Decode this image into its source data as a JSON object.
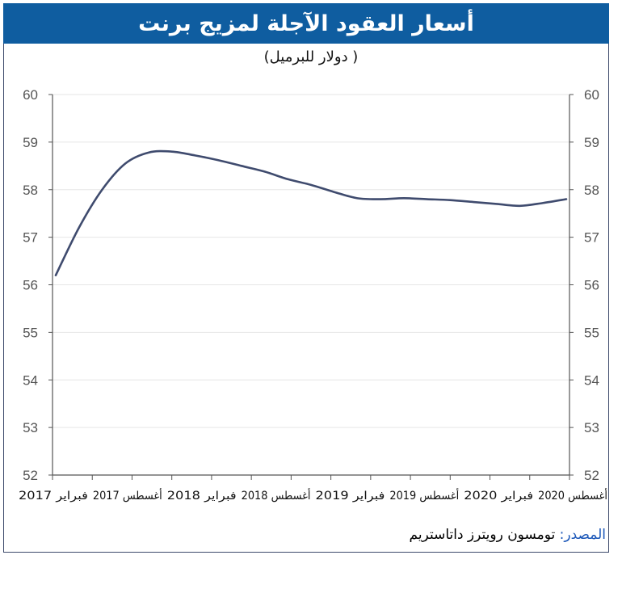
{
  "title": "أسعار العقود الآجلة لمزيج برنت",
  "subtitle": "( دولار للبرميل)",
  "source": {
    "label": "المصدر:",
    "text": "تومسون رويترز داتاستريم"
  },
  "colors": {
    "title_bg": "#0f5da0",
    "line": "#3f4b6e",
    "grid": "#e6e6e6",
    "source_label": "#1a56b8"
  },
  "chart_data": {
    "type": "line",
    "title": "أسعار العقود الآجلة لمزيج برنت",
    "subtitle": "( دولار للبرميل)",
    "ylim": [
      52,
      60
    ],
    "yticks": [
      52,
      53,
      54,
      55,
      56,
      57,
      58,
      59,
      60
    ],
    "grid": true,
    "x_ticks": [
      "فبراير 2017",
      "أغسطس 2017",
      "فبراير 2018",
      "أغسطس 2018",
      "فبراير 2019",
      "أغسطس 2019",
      "فبراير 2020",
      "أغسطس 2020"
    ],
    "x_tick_labels_shown": [
      "فبراير 2017",
      "أغسطس 2017",
      "فبراير 2018",
      "أغسطس 2018",
      "فبراير 2019",
      "أغسطس 2019",
      "فبراير 2020",
      "أغسطس 2020"
    ],
    "series": [
      {
        "values": [
          {
            "x": 0.0,
            "y": 56.2
          },
          {
            "x": 0.5,
            "y": 57.2
          },
          {
            "x": 1.0,
            "y": 58.0
          },
          {
            "x": 1.5,
            "y": 58.55
          },
          {
            "x": 2.0,
            "y": 58.78
          },
          {
            "x": 2.5,
            "y": 58.8
          },
          {
            "x": 3.0,
            "y": 58.72
          },
          {
            "x": 3.5,
            "y": 58.62
          },
          {
            "x": 4.0,
            "y": 58.5
          },
          {
            "x": 4.5,
            "y": 58.38
          },
          {
            "x": 5.0,
            "y": 58.22
          },
          {
            "x": 5.5,
            "y": 58.1
          },
          {
            "x": 6.0,
            "y": 57.95
          },
          {
            "x": 6.5,
            "y": 57.82
          },
          {
            "x": 7.0,
            "y": 57.8
          },
          {
            "x": 7.5,
            "y": 57.82
          },
          {
            "x": 8.0,
            "y": 57.8
          },
          {
            "x": 8.5,
            "y": 57.78
          },
          {
            "x": 9.0,
            "y": 57.74
          },
          {
            "x": 9.5,
            "y": 57.7
          },
          {
            "x": 10.0,
            "y": 57.66
          },
          {
            "x": 10.5,
            "y": 57.72
          },
          {
            "x": 11.0,
            "y": 57.8
          }
        ]
      }
    ]
  }
}
